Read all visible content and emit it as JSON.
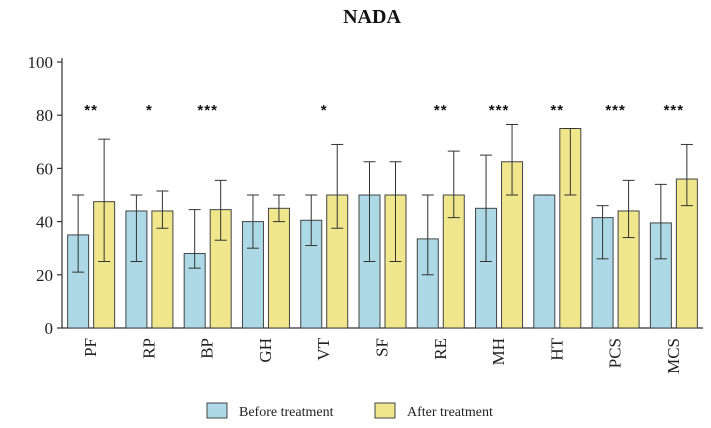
{
  "chart_data": {
    "type": "bar",
    "title": "NADA",
    "xlabel": "",
    "ylabel": "",
    "ylim": [
      0,
      100
    ],
    "yticks": [
      0,
      20,
      40,
      60,
      80,
      100
    ],
    "categories": [
      "PF",
      "RP",
      "BP",
      "GH",
      "VT",
      "SF",
      "RE",
      "MH",
      "HT",
      "PCS",
      "MCS"
    ],
    "significance": [
      "**",
      "*",
      "***",
      "",
      "*",
      "",
      "**",
      "***",
      "**",
      "***",
      "***"
    ],
    "series": [
      {
        "name": "Before treatment",
        "color": "#add8e6",
        "values": [
          35,
          44,
          28,
          40,
          40.5,
          50,
          33.5,
          45,
          50,
          41.5,
          39.5
        ],
        "err_low": [
          21,
          25,
          22.5,
          30,
          31,
          25,
          20,
          25,
          50,
          26,
          26
        ],
        "err_high": [
          50,
          50,
          44.5,
          50,
          50,
          62.5,
          50,
          65,
          50,
          46,
          54
        ]
      },
      {
        "name": "After treatment",
        "color": "#f0e68c",
        "values": [
          47.5,
          44,
          44.5,
          45,
          50,
          50,
          50,
          62.5,
          75,
          44,
          56
        ],
        "err_low": [
          25,
          37.5,
          33,
          40,
          37.5,
          25,
          41.5,
          50,
          50,
          34,
          46
        ],
        "err_high": [
          71,
          51.5,
          55.5,
          50,
          69,
          62.5,
          66.5,
          76.5,
          75,
          55.5,
          69
        ]
      }
    ],
    "legend": [
      "Before treatment",
      "After treatment"
    ],
    "legend_position": "bottom-center",
    "grid": false
  }
}
